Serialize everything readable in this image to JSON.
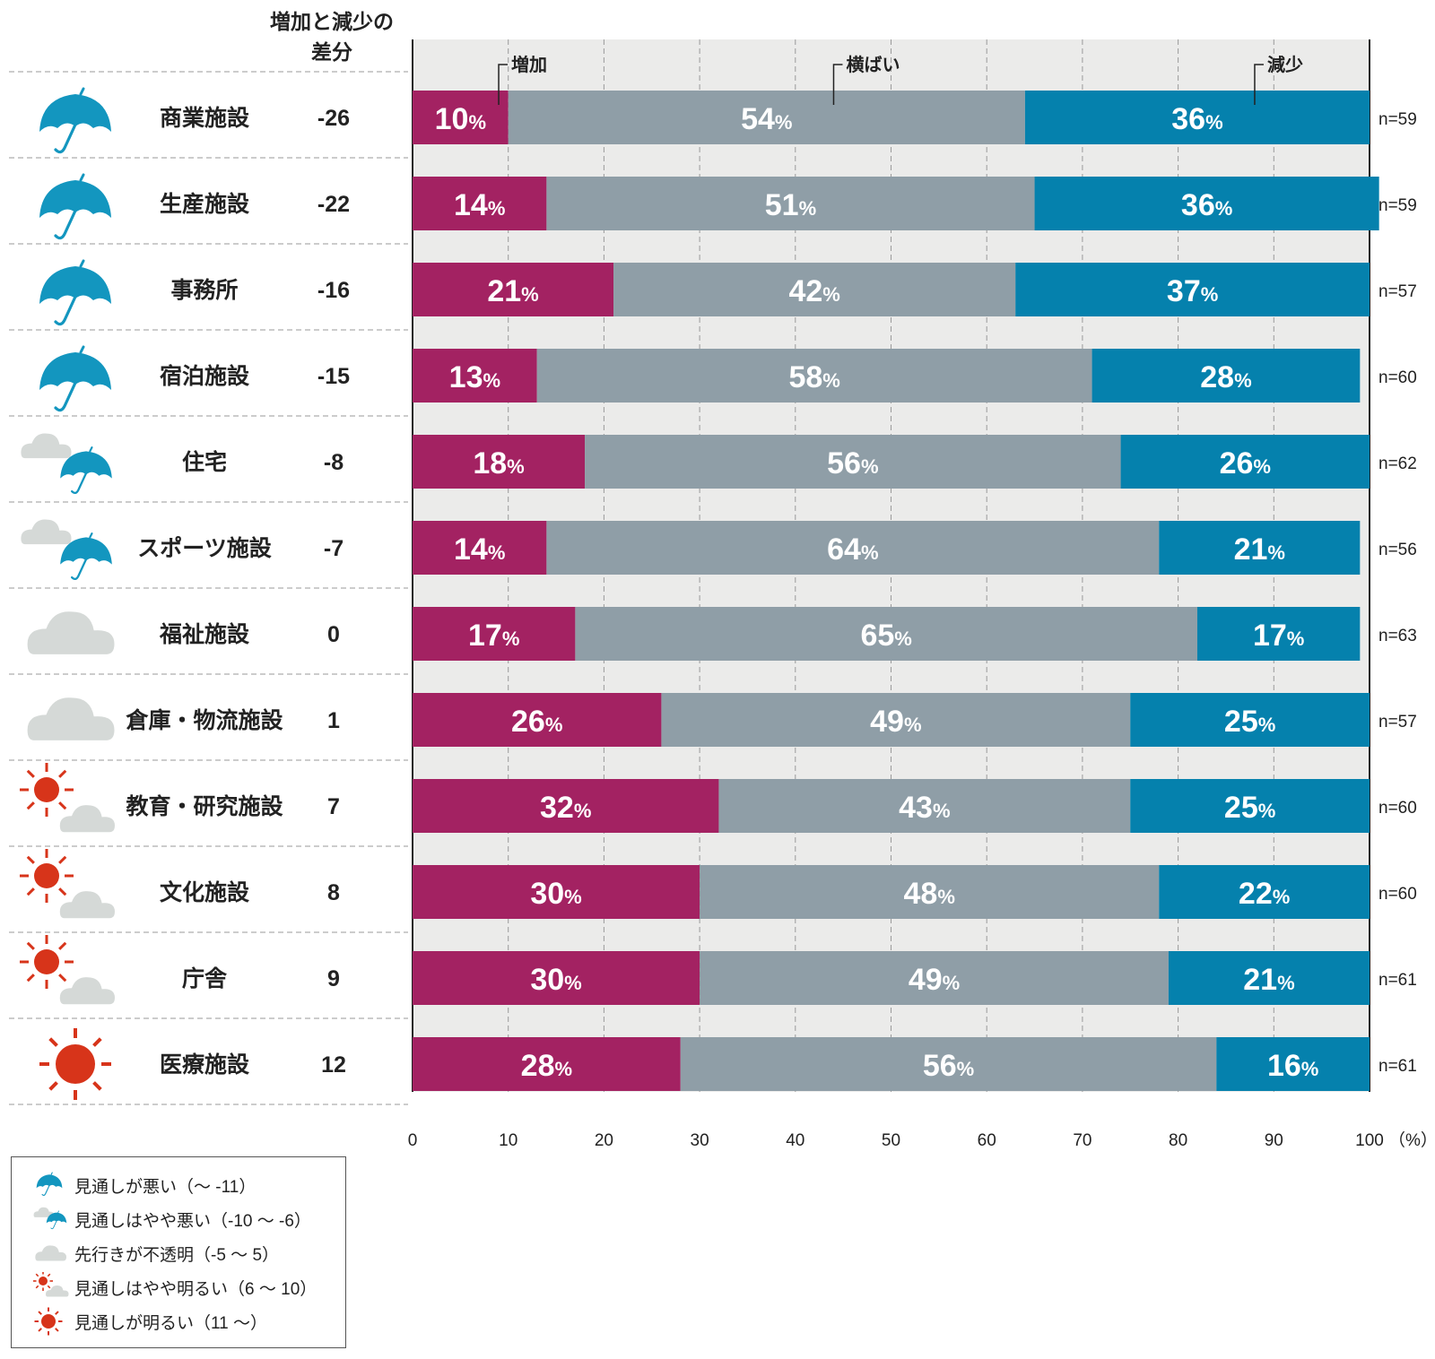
{
  "chart_data": {
    "type": "bar",
    "stacked": true,
    "orientation": "horizontal",
    "header_diff": "増加と減少の差分",
    "series": [
      {
        "name": "増加",
        "color": "#a32262",
        "values": [
          10,
          14,
          21,
          13,
          18,
          14,
          17,
          26,
          32,
          30,
          30,
          28
        ]
      },
      {
        "name": "横ばい",
        "color": "#8f9ea7",
        "values": [
          54,
          51,
          42,
          58,
          56,
          64,
          65,
          49,
          43,
          48,
          49,
          56
        ]
      },
      {
        "name": "減少",
        "color": "#0581ad",
        "values": [
          36,
          36,
          37,
          28,
          26,
          21,
          17,
          25,
          25,
          22,
          21,
          16
        ]
      }
    ],
    "categories": [
      "商業施設",
      "生産施設",
      "事務所",
      "宿泊施設",
      "住宅",
      "スポーツ施設",
      "福祉施設",
      "倉庫・物流施設",
      "教育・研究施設",
      "文化施設",
      "庁舎",
      "医療施設"
    ],
    "diff": [
      "-26",
      "-22",
      "-16",
      "-15",
      "-8",
      "-7",
      "0",
      "1",
      "7",
      "8",
      "9",
      "12"
    ],
    "n": [
      "n=59",
      "n=59",
      "n=57",
      "n=60",
      "n=62",
      "n=56",
      "n=63",
      "n=57",
      "n=60",
      "n=60",
      "n=61",
      "n=61"
    ],
    "icons": [
      "umbrella-icon",
      "umbrella-icon",
      "umbrella-icon",
      "umbrella-icon",
      "cloud-umbrella-icon",
      "cloud-umbrella-icon",
      "cloud-icon",
      "cloud-icon",
      "sun-cloud-icon",
      "sun-cloud-icon",
      "sun-cloud-icon",
      "sun-icon"
    ],
    "pct_suffix": "%",
    "xlim": [
      0,
      100
    ],
    "xticks": [
      "0",
      "10",
      "20",
      "30",
      "40",
      "50",
      "60",
      "70",
      "80",
      "90",
      "100"
    ],
    "x_unit": "（%）",
    "grid": true,
    "legend_position": "bottom-left"
  },
  "legend": [
    {
      "icon": "umbrella-icon",
      "label": "見通しが悪い（〜 -11）"
    },
    {
      "icon": "cloud-umbrella-icon",
      "label": "見通しはやや悪い（-10 〜 -6）"
    },
    {
      "icon": "cloud-icon",
      "label": "先行きが不透明（-5 〜 5）"
    },
    {
      "icon": "sun-cloud-icon",
      "label": "見通しはやや明るい（6 〜 10）"
    },
    {
      "icon": "sun-icon",
      "label": "見通しが明るい（11 〜）"
    }
  ],
  "colors": {
    "umbrella": "#1396bf",
    "cloud": "#d5d9d7",
    "sun": "#d7341a",
    "plot_bg": "#ebebea"
  }
}
